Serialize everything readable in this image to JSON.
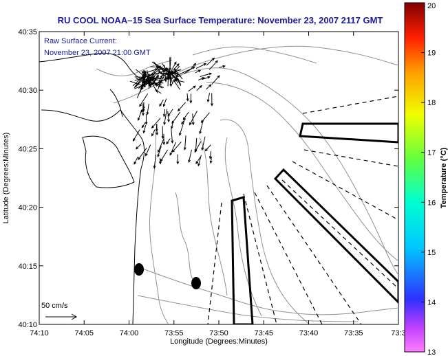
{
  "title": "RU COOL  NOAA–15  Sea Surface Temperature:  November 23, 2007 2117 GMT",
  "legend": {
    "line1": "Raw Surface Current:",
    "line2": "November 23, 2007 21:00 GMT"
  },
  "scale": {
    "label": "50 cm/s"
  },
  "axes": {
    "xlabel": "Longitude (Degrees:Minutes)",
    "ylabel": "Latitude (Degrees:Minutes)",
    "xticks": [
      "74:10",
      "74:05",
      "74:00",
      "73:55",
      "73:50",
      "73:45",
      "73:40",
      "73:35",
      "73:3"
    ],
    "yticks": [
      "40:35",
      "40:30",
      "40:25",
      "40:20",
      "40:15",
      "40:10"
    ]
  },
  "colorbar": {
    "label": "Temperature (°C)",
    "min": 13,
    "max": 20,
    "ticks": [
      "20",
      "19",
      "18",
      "17",
      "16",
      "15",
      "14",
      "13"
    ]
  },
  "colors": {
    "title": "#1a1aa0",
    "contour": "#909090",
    "coast": "#000000",
    "vectors": "#000000"
  }
}
